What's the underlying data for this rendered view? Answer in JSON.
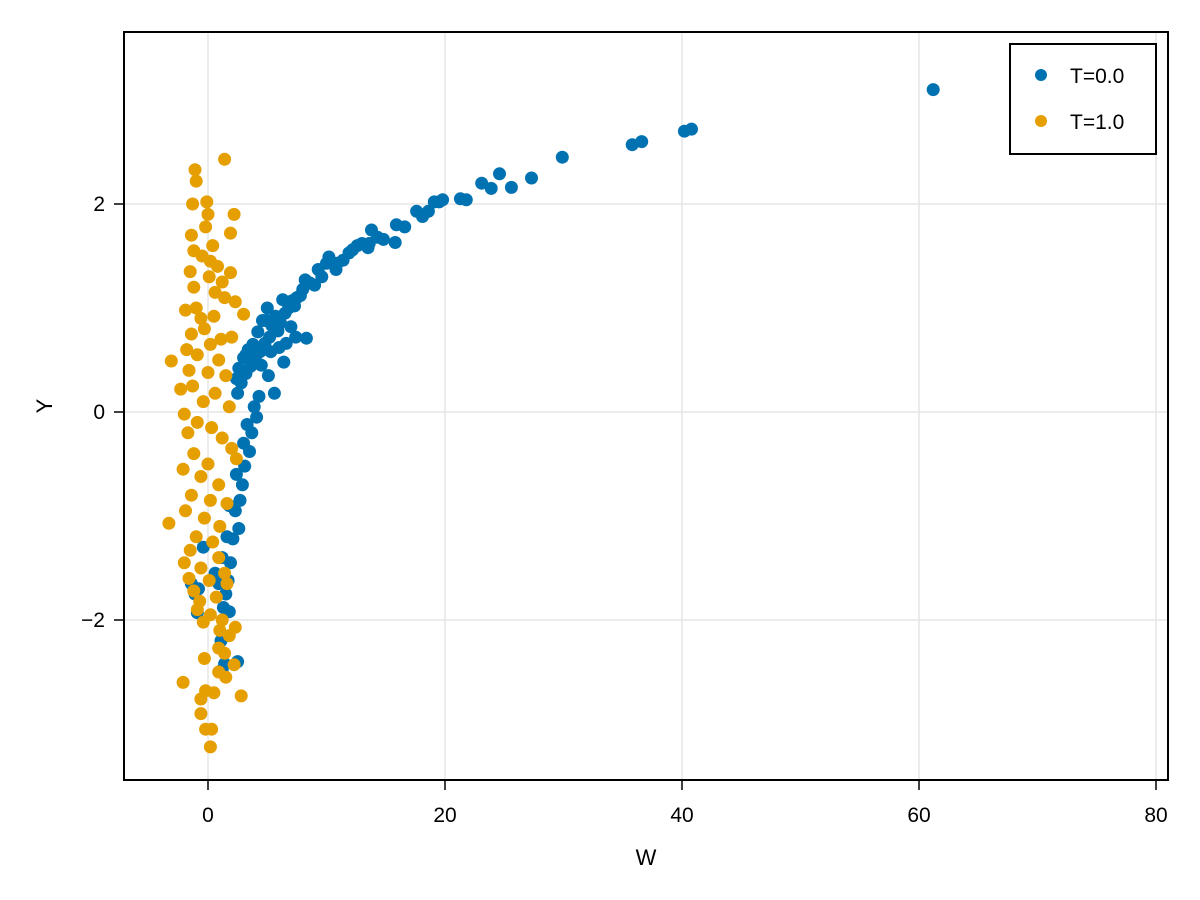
{
  "chart_data": {
    "type": "scatter",
    "title": "",
    "xlabel": "W",
    "ylabel": "Y",
    "xlim": [
      -7,
      81
    ],
    "ylim": [
      -3.6,
      3.65
    ],
    "xticks": [
      0,
      20,
      40,
      60,
      80
    ],
    "yticks": [
      -2,
      0,
      2
    ],
    "xtick_labels": [
      "0",
      "20",
      "40",
      "60",
      "80"
    ],
    "ytick_labels": [
      "−2",
      "0",
      "2"
    ],
    "grid": true,
    "legend_position": "top-right",
    "series": [
      {
        "name": "T=0.0",
        "color": "#0072b2",
        "points": [
          [
            61.2,
            3.1
          ],
          [
            40.8,
            2.72
          ],
          [
            40.2,
            2.7
          ],
          [
            36.6,
            2.6
          ],
          [
            35.8,
            2.57
          ],
          [
            29.9,
            2.45
          ],
          [
            27.3,
            2.25
          ],
          [
            25.6,
            2.16
          ],
          [
            24.6,
            2.29
          ],
          [
            23.9,
            2.15
          ],
          [
            23.1,
            2.2
          ],
          [
            21.8,
            2.04
          ],
          [
            21.3,
            2.05
          ],
          [
            19.8,
            2.04
          ],
          [
            19.5,
            2.02
          ],
          [
            19.1,
            2.02
          ],
          [
            18.6,
            1.93
          ],
          [
            18.1,
            1.88
          ],
          [
            17.6,
            1.93
          ],
          [
            16.6,
            1.78
          ],
          [
            15.9,
            1.8
          ],
          [
            15.8,
            1.63
          ],
          [
            14.8,
            1.66
          ],
          [
            14.3,
            1.68
          ],
          [
            13.8,
            1.75
          ],
          [
            13.6,
            1.62
          ],
          [
            13.5,
            1.58
          ],
          [
            13.0,
            1.62
          ],
          [
            12.6,
            1.6
          ],
          [
            12.2,
            1.56
          ],
          [
            11.9,
            1.53
          ],
          [
            11.4,
            1.46
          ],
          [
            10.9,
            1.43
          ],
          [
            10.8,
            1.37
          ],
          [
            10.2,
            1.49
          ],
          [
            10.0,
            1.43
          ],
          [
            9.6,
            1.3
          ],
          [
            9.3,
            1.37
          ],
          [
            9.0,
            1.22
          ],
          [
            8.6,
            1.24
          ],
          [
            8.2,
            1.27
          ],
          [
            8.0,
            1.18
          ],
          [
            7.8,
            1.12
          ],
          [
            7.5,
            1.1
          ],
          [
            7.3,
            1.02
          ],
          [
            7.1,
            1.07
          ],
          [
            6.8,
            1.0
          ],
          [
            6.5,
            0.95
          ],
          [
            6.3,
            1.08
          ],
          [
            6.1,
            0.86
          ],
          [
            5.9,
            0.78
          ],
          [
            5.7,
            0.92
          ],
          [
            5.4,
            0.83
          ],
          [
            5.2,
            0.72
          ],
          [
            5.0,
            1.0
          ],
          [
            4.8,
            0.66
          ],
          [
            4.6,
            0.88
          ],
          [
            4.4,
            0.58
          ],
          [
            4.2,
            0.77
          ],
          [
            4.0,
            0.52
          ],
          [
            3.8,
            0.65
          ],
          [
            3.6,
            0.44
          ],
          [
            3.4,
            0.6
          ],
          [
            3.2,
            0.37
          ],
          [
            3.0,
            0.52
          ],
          [
            2.8,
            0.28
          ],
          [
            2.6,
            0.42
          ],
          [
            2.5,
            0.18
          ],
          [
            2.4,
            0.32
          ],
          [
            7.4,
            0.72
          ],
          [
            8.3,
            0.71
          ],
          [
            6.4,
            0.48
          ],
          [
            5.1,
            0.35
          ],
          [
            5.6,
            0.18
          ],
          [
            4.3,
            0.15
          ],
          [
            4.1,
            -0.05
          ],
          [
            3.9,
            0.05
          ],
          [
            3.7,
            -0.2
          ],
          [
            3.5,
            -0.38
          ],
          [
            3.3,
            -0.12
          ],
          [
            3.1,
            -0.52
          ],
          [
            3.0,
            -0.3
          ],
          [
            2.9,
            -0.7
          ],
          [
            2.7,
            -0.85
          ],
          [
            2.6,
            -1.12
          ],
          [
            2.4,
            -0.6
          ],
          [
            2.3,
            -0.95
          ],
          [
            2.1,
            -1.22
          ],
          [
            1.9,
            -1.45
          ],
          [
            1.8,
            -0.9
          ],
          [
            1.7,
            -1.62
          ],
          [
            1.6,
            -1.2
          ],
          [
            1.5,
            -1.75
          ],
          [
            1.3,
            -1.88
          ],
          [
            1.2,
            -1.4
          ],
          [
            0.9,
            -1.65
          ],
          [
            0.6,
            -1.55
          ],
          [
            -0.4,
            -1.3
          ],
          [
            -0.8,
            -1.7
          ],
          [
            -1.1,
            -1.75
          ],
          [
            -1.4,
            -1.65
          ],
          [
            -0.9,
            -1.93
          ],
          [
            1.8,
            -1.92
          ],
          [
            1.1,
            -2.2
          ],
          [
            1.4,
            -2.42
          ],
          [
            2.5,
            -2.4
          ],
          [
            1.2,
            -2.48
          ],
          [
            3.2,
            0.55
          ],
          [
            4.5,
            0.45
          ],
          [
            5.3,
            0.58
          ],
          [
            6.0,
            0.62
          ],
          [
            7.0,
            0.82
          ],
          [
            6.6,
            0.66
          ],
          [
            4.9,
            0.88
          ]
        ]
      },
      {
        "name": "T=1.0",
        "color": "#e69f00",
        "points": [
          [
            1.4,
            2.43
          ],
          [
            -1.1,
            2.33
          ],
          [
            -1.0,
            2.22
          ],
          [
            -1.3,
            2.0
          ],
          [
            -0.1,
            2.02
          ],
          [
            0.0,
            1.9
          ],
          [
            2.2,
            1.9
          ],
          [
            1.9,
            1.72
          ],
          [
            -1.4,
            1.7
          ],
          [
            -0.2,
            1.78
          ],
          [
            0.4,
            1.6
          ],
          [
            -1.2,
            1.55
          ],
          [
            -0.5,
            1.5
          ],
          [
            -1.5,
            1.35
          ],
          [
            1.9,
            1.34
          ],
          [
            0.2,
            1.45
          ],
          [
            0.8,
            1.4
          ],
          [
            1.2,
            1.25
          ],
          [
            0.6,
            1.15
          ],
          [
            -1.2,
            1.2
          ],
          [
            0.1,
            1.3
          ],
          [
            1.4,
            1.1
          ],
          [
            2.3,
            1.06
          ],
          [
            -1.0,
            1.0
          ],
          [
            -0.6,
            0.9
          ],
          [
            3.0,
            0.94
          ],
          [
            -1.9,
            0.98
          ],
          [
            -0.3,
            0.8
          ],
          [
            0.5,
            0.92
          ],
          [
            -1.4,
            0.75
          ],
          [
            1.1,
            0.7
          ],
          [
            2.0,
            0.72
          ],
          [
            -1.8,
            0.6
          ],
          [
            0.2,
            0.65
          ],
          [
            -0.9,
            0.55
          ],
          [
            0.9,
            0.5
          ],
          [
            -3.1,
            0.49
          ],
          [
            -1.6,
            0.4
          ],
          [
            0.0,
            0.38
          ],
          [
            1.5,
            0.35
          ],
          [
            -1.3,
            0.25
          ],
          [
            -2.3,
            0.22
          ],
          [
            0.6,
            0.18
          ],
          [
            -0.4,
            0.1
          ],
          [
            1.8,
            0.05
          ],
          [
            -2.0,
            -0.02
          ],
          [
            -0.9,
            -0.1
          ],
          [
            0.3,
            -0.15
          ],
          [
            -1.7,
            -0.2
          ],
          [
            1.2,
            -0.25
          ],
          [
            2.0,
            -0.35
          ],
          [
            -1.2,
            -0.4
          ],
          [
            0.0,
            -0.5
          ],
          [
            2.4,
            -0.45
          ],
          [
            -2.1,
            -0.55
          ],
          [
            -0.6,
            -0.62
          ],
          [
            0.9,
            -0.7
          ],
          [
            -1.4,
            -0.8
          ],
          [
            0.2,
            -0.85
          ],
          [
            1.6,
            -0.88
          ],
          [
            -1.9,
            -0.95
          ],
          [
            -0.3,
            -1.02
          ],
          [
            -3.3,
            -1.07
          ],
          [
            1.0,
            -1.1
          ],
          [
            -1.0,
            -1.2
          ],
          [
            0.4,
            -1.25
          ],
          [
            -1.5,
            -1.33
          ],
          [
            0.9,
            -1.4
          ],
          [
            -2.0,
            -1.45
          ],
          [
            -0.6,
            -1.5
          ],
          [
            1.4,
            -1.55
          ],
          [
            -1.6,
            -1.6
          ],
          [
            0.1,
            -1.62
          ],
          [
            -1.2,
            -1.72
          ],
          [
            0.7,
            -1.78
          ],
          [
            -0.7,
            -1.82
          ],
          [
            1.6,
            -1.65
          ],
          [
            -0.9,
            -1.9
          ],
          [
            0.2,
            -1.95
          ],
          [
            1.2,
            -2.0
          ],
          [
            -0.4,
            -2.02
          ],
          [
            2.3,
            -2.07
          ],
          [
            1.0,
            -2.1
          ],
          [
            1.8,
            -2.15
          ],
          [
            0.9,
            -2.27
          ],
          [
            1.4,
            -2.32
          ],
          [
            -0.3,
            -2.37
          ],
          [
            2.2,
            -2.43
          ],
          [
            0.9,
            -2.5
          ],
          [
            1.5,
            -2.55
          ],
          [
            -2.1,
            -2.6
          ],
          [
            -0.2,
            -2.68
          ],
          [
            0.5,
            -2.7
          ],
          [
            2.8,
            -2.73
          ],
          [
            -0.6,
            -2.76
          ],
          [
            -0.6,
            -2.9
          ],
          [
            -0.2,
            -3.05
          ],
          [
            0.3,
            -3.05
          ],
          [
            0.2,
            -3.22
          ]
        ]
      }
    ]
  },
  "legend": {
    "entries": [
      {
        "label": "T=0.0",
        "color": "#0072b2"
      },
      {
        "label": "T=1.0",
        "color": "#e69f00"
      }
    ]
  }
}
